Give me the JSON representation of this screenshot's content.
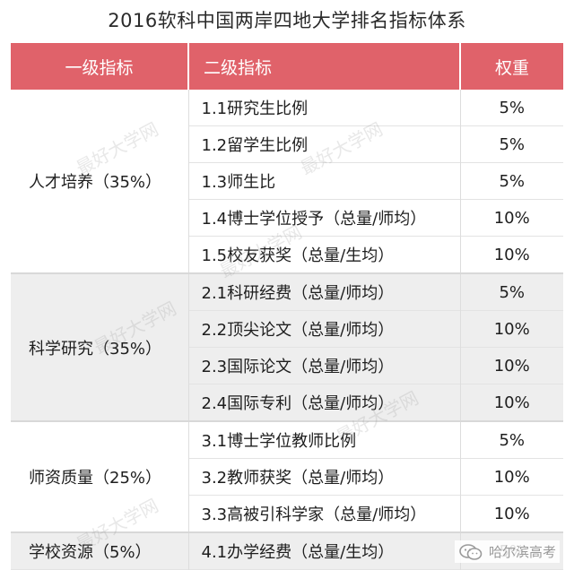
{
  "title": "2016软科中国两岸四地大学排名指标体系",
  "headers": {
    "col1": "一级指标",
    "col2": "二级指标",
    "col3": "权重"
  },
  "groups": [
    {
      "category": "人才培养（35%）",
      "rows": [
        {
          "indicator": "1.1研究生比例",
          "weight": "5%"
        },
        {
          "indicator": "1.2留学生比例",
          "weight": "5%"
        },
        {
          "indicator": "1.3师生比",
          "weight": "5%"
        },
        {
          "indicator": "1.4博士学位授予（总量/师均）",
          "weight": "10%"
        },
        {
          "indicator": "1.5校友获奖（总量/生均）",
          "weight": "10%"
        }
      ]
    },
    {
      "category": "科学研究（35%）",
      "rows": [
        {
          "indicator": "2.1科研经费（总量/师均）",
          "weight": "5%"
        },
        {
          "indicator": "2.2顶尖论文（总量/师均）",
          "weight": "10%"
        },
        {
          "indicator": "2.3国际论文（总量/师均）",
          "weight": "10%"
        },
        {
          "indicator": "2.4国际专利（总量/师均）",
          "weight": "10%"
        }
      ]
    },
    {
      "category": "师资质量（25%）",
      "rows": [
        {
          "indicator": "3.1博士学位教师比例",
          "weight": "5%"
        },
        {
          "indicator": "3.2教师获奖（总量/师均）",
          "weight": "10%"
        },
        {
          "indicator": "3.3高被引科学家（总量/师均）",
          "weight": "10%"
        }
      ]
    },
    {
      "category": "学校资源（5%）",
      "rows": [
        {
          "indicator": "4.1办学经费（总量/生均）",
          "weight": "5%"
        }
      ]
    }
  ],
  "watermark": "最好大学网",
  "footer": {
    "icon": "wechat-icon",
    "account": "哈尔滨高考"
  },
  "colors": {
    "header_bg": "#e0626a",
    "header_text": "#ffffff",
    "band_alt": "#eeeeee"
  }
}
